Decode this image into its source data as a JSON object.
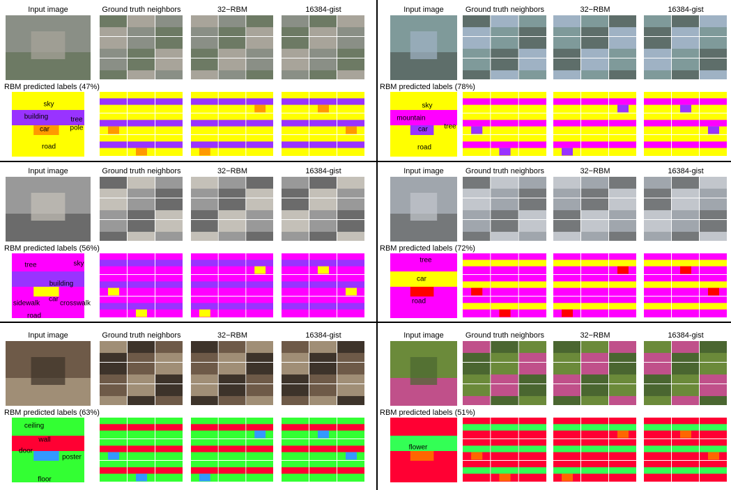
{
  "panels": [
    {
      "headers": {
        "input": "Input image",
        "neighbors": "Ground truth neighbors",
        "rbm": "32−RBM",
        "gist": "16384-gist"
      },
      "caption": "RBM predicted labels (47%)",
      "labels": [
        "sky",
        "building",
        "tree",
        "car",
        "pole",
        "road"
      ]
    },
    {
      "headers": {
        "input": "Input image",
        "neighbors": "Ground truth neighbors",
        "rbm": "32−RBM",
        "gist": "16384-gist"
      },
      "caption": "RBM predicted labels (78%)",
      "labels": [
        "sky",
        "mountain",
        "car",
        "tree",
        "road"
      ]
    },
    {
      "headers": {
        "input": "Input image",
        "neighbors": "Ground truth neighbors",
        "rbm": "32−RBM",
        "gist": "16384-gist"
      },
      "caption": "RBM predicted labels (56%)",
      "labels": [
        "tree",
        "sky",
        "building",
        "car",
        "sidewalk",
        "crosswalk",
        "road"
      ]
    },
    {
      "headers": {
        "input": "Input image",
        "neighbors": "Ground truth neighbors",
        "rbm": "32−RBM",
        "gist": "16384-gist"
      },
      "caption": "RBM predicted labels (72%)",
      "labels": [
        "tree",
        "car",
        "road"
      ]
    },
    {
      "headers": {
        "input": "Input image",
        "neighbors": "Ground truth neighbors",
        "rbm": "32−RBM",
        "gist": "16384-gist"
      },
      "caption": "RBM predicted labels (63%)",
      "labels": [
        "ceiling",
        "wall",
        "door",
        "poster",
        "floor"
      ]
    },
    {
      "headers": {
        "input": "Input image",
        "neighbors": "Ground truth neighbors",
        "rbm": "32−RBM",
        "gist": "16384-gist"
      },
      "caption": "RBM predicted labels (51%)",
      "labels": [
        "flower"
      ]
    }
  ]
}
